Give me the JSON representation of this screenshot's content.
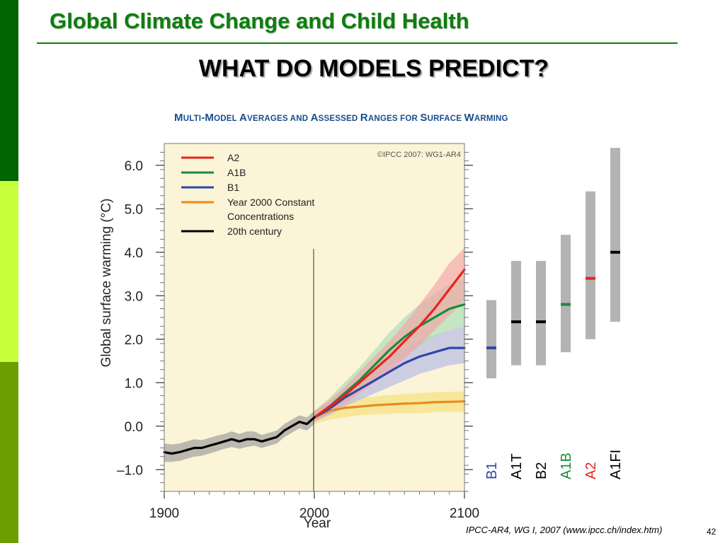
{
  "slide": {
    "title": "Global Climate Change and Child Health",
    "subtitle": "WHAT DO MODELS PREDICT?",
    "figure_title_parts": [
      "M",
      "ULTI",
      "-M",
      "ODEL ",
      "A",
      "VERAGES AND ",
      "A",
      "SSESSED ",
      "R",
      "ANGES FOR ",
      "S",
      "URFACE ",
      "W",
      "ARMING"
    ],
    "citation": "IPCC-AR4, WG I, 2007 (www.ipcc.ch/index.htm)",
    "page_number": "42"
  },
  "colors": {
    "sidebar_dark": "#006400",
    "sidebar_light": "#c6ff3a",
    "sidebar_mid": "#6b9e00",
    "title_green": "#0f7d0f",
    "figure_title_blue": "#1a4d8a",
    "plot_background": "#fbf4d7"
  },
  "chart_data": {
    "type": "line",
    "xlabel": "Year",
    "ylabel": "Global surface warming (°C)",
    "xlim": [
      1900,
      2100
    ],
    "ylim": [
      -1.5,
      6.5
    ],
    "x_ticks": [
      1900,
      2000,
      2100
    ],
    "y_ticks": [
      -1.0,
      0.0,
      1.0,
      2.0,
      3.0,
      4.0,
      5.0,
      6.0
    ],
    "y_tick_labels": [
      "–1.0",
      "0.0",
      "1.0",
      "2.0",
      "3.0",
      "4.0",
      "5.0",
      "6.0"
    ],
    "copyright": "©IPCC 2007: WG1-AR4",
    "legend_position": "top-left",
    "reference_line_x": 2000,
    "series": [
      {
        "name": "A2",
        "color": "#e8231c",
        "band_color": "#f3a3a6",
        "x": [
          2000,
          2010,
          2020,
          2030,
          2040,
          2050,
          2060,
          2070,
          2080,
          2090,
          2100
        ],
        "y": [
          0.2,
          0.45,
          0.7,
          1.0,
          1.3,
          1.6,
          1.95,
          2.3,
          2.7,
          3.15,
          3.6
        ],
        "lower": [
          0.1,
          0.3,
          0.5,
          0.75,
          1.0,
          1.25,
          1.55,
          1.85,
          2.2,
          2.55,
          2.9
        ],
        "upper": [
          0.35,
          0.6,
          0.9,
          1.25,
          1.6,
          1.95,
          2.35,
          2.8,
          3.25,
          3.75,
          4.1
        ]
      },
      {
        "name": "A1B",
        "color": "#1a8b3c",
        "band_color": "#a7ddb8",
        "x": [
          2000,
          2010,
          2020,
          2030,
          2040,
          2050,
          2060,
          2070,
          2080,
          2090,
          2100
        ],
        "y": [
          0.2,
          0.45,
          0.75,
          1.05,
          1.4,
          1.75,
          2.05,
          2.3,
          2.5,
          2.7,
          2.8
        ],
        "lower": [
          0.1,
          0.3,
          0.55,
          0.8,
          1.1,
          1.4,
          1.65,
          1.85,
          2.05,
          2.2,
          2.3
        ],
        "upper": [
          0.35,
          0.65,
          1.0,
          1.35,
          1.75,
          2.15,
          2.5,
          2.8,
          3.05,
          3.25,
          3.4
        ]
      },
      {
        "name": "B1",
        "color": "#2f47a8",
        "band_color": "#b4b9e8",
        "x": [
          2000,
          2010,
          2020,
          2030,
          2040,
          2050,
          2060,
          2070,
          2080,
          2090,
          2100
        ],
        "y": [
          0.2,
          0.4,
          0.65,
          0.85,
          1.05,
          1.25,
          1.45,
          1.6,
          1.7,
          1.8,
          1.8
        ],
        "lower": [
          0.1,
          0.25,
          0.45,
          0.6,
          0.75,
          0.9,
          1.05,
          1.2,
          1.3,
          1.4,
          1.45
        ],
        "upper": [
          0.35,
          0.55,
          0.85,
          1.1,
          1.35,
          1.6,
          1.8,
          1.95,
          2.1,
          2.2,
          2.3
        ]
      },
      {
        "name": "Year 2000 Constant\nConcentrations",
        "color": "#ea8a1e",
        "band_color": "#f4e07a",
        "x": [
          2000,
          2010,
          2020,
          2030,
          2040,
          2050,
          2060,
          2070,
          2080,
          2090,
          2100
        ],
        "y": [
          0.2,
          0.35,
          0.42,
          0.45,
          0.48,
          0.5,
          0.52,
          0.53,
          0.55,
          0.56,
          0.57
        ],
        "lower": [
          0.05,
          0.15,
          0.2,
          0.25,
          0.27,
          0.28,
          0.3,
          0.3,
          0.32,
          0.33,
          0.33
        ],
        "upper": [
          0.35,
          0.5,
          0.6,
          0.65,
          0.68,
          0.72,
          0.74,
          0.76,
          0.78,
          0.79,
          0.8
        ]
      },
      {
        "name": "20th century",
        "color": "#000000",
        "band_color": "#9a9a9a",
        "x": [
          1900,
          1905,
          1910,
          1915,
          1920,
          1925,
          1930,
          1935,
          1940,
          1945,
          1950,
          1955,
          1960,
          1965,
          1970,
          1975,
          1980,
          1985,
          1990,
          1995,
          2000
        ],
        "y": [
          -0.6,
          -0.63,
          -0.6,
          -0.55,
          -0.5,
          -0.5,
          -0.45,
          -0.4,
          -0.35,
          -0.3,
          -0.35,
          -0.3,
          -0.3,
          -0.35,
          -0.3,
          -0.25,
          -0.1,
          0.0,
          0.1,
          0.05,
          0.2
        ],
        "lower": [
          -0.82,
          -0.82,
          -0.8,
          -0.75,
          -0.7,
          -0.68,
          -0.63,
          -0.58,
          -0.52,
          -0.48,
          -0.52,
          -0.48,
          -0.45,
          -0.5,
          -0.45,
          -0.4,
          -0.25,
          -0.15,
          -0.05,
          -0.1,
          0.05
        ],
        "upper": [
          -0.4,
          -0.42,
          -0.4,
          -0.35,
          -0.3,
          -0.32,
          -0.27,
          -0.22,
          -0.18,
          -0.12,
          -0.18,
          -0.12,
          -0.12,
          -0.2,
          -0.15,
          -0.1,
          0.05,
          0.15,
          0.25,
          0.2,
          0.35
        ]
      }
    ],
    "scenario_ranges": [
      {
        "name": "B1",
        "low": 1.1,
        "high": 2.9,
        "best": 1.8,
        "label_color": "#2f47a8",
        "best_color": "#2f47a8"
      },
      {
        "name": "A1T",
        "low": 1.4,
        "high": 3.8,
        "best": 2.4,
        "label_color": "#000000",
        "best_color": "#000000"
      },
      {
        "name": "B2",
        "low": 1.4,
        "high": 3.8,
        "best": 2.4,
        "label_color": "#000000",
        "best_color": "#000000"
      },
      {
        "name": "A1B",
        "low": 1.7,
        "high": 4.4,
        "best": 2.8,
        "label_color": "#1a8b3c",
        "best_color": "#1a8b3c"
      },
      {
        "name": "A2",
        "low": 2.0,
        "high": 5.4,
        "best": 3.4,
        "label_color": "#e8231c",
        "best_color": "#e8231c"
      },
      {
        "name": "A1FI",
        "low": 2.4,
        "high": 6.4,
        "best": 4.0,
        "label_color": "#000000",
        "best_color": "#000000"
      }
    ]
  }
}
